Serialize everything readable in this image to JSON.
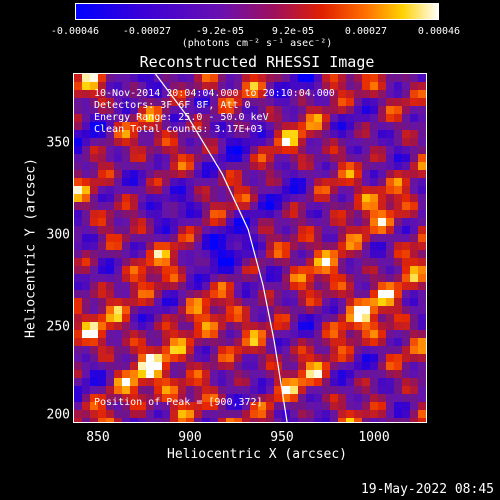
{
  "colorbar": {
    "tick_labels": [
      "-0.00046",
      "-0.00027",
      "-9.2e-05",
      "9.2e-05",
      "0.00027",
      "0.00046"
    ],
    "unit": "(photons cm⁻² s⁻¹ asec⁻²)",
    "range": [
      -0.00046,
      0.00046
    ]
  },
  "chart_data": {
    "type": "heatmap",
    "title": "Reconstructed RHESSI Image",
    "xlabel": "Heliocentric X (arcsec)",
    "ylabel": "Heliocentric Y (arcsec)",
    "xlim": [
      838,
      1028
    ],
    "ylim": [
      196,
      384
    ],
    "xticks": [
      850,
      900,
      950,
      1000
    ],
    "yticks": [
      200,
      250,
      300,
      350
    ],
    "annotations": [
      "10-Nov-2014 20:04:04.000 to 20:10:04.000",
      "Detectors: 3F 6F 8F, Att 0",
      "Energy Range: 25.0 - 50.0 keV",
      "Clean     Total counts: 3.17E+03"
    ],
    "peak_label": "Position of Peak = [900,372]",
    "peak_position": [
      900,
      372
    ],
    "limb_curve": [
      [
        882,
        384
      ],
      [
        900,
        360
      ],
      [
        918,
        330
      ],
      [
        932,
        300
      ],
      [
        940,
        270
      ],
      [
        946,
        240
      ],
      [
        950,
        215
      ],
      [
        953,
        196
      ]
    ]
  },
  "footer": {
    "timestamp": "19-May-2022 08:45"
  }
}
